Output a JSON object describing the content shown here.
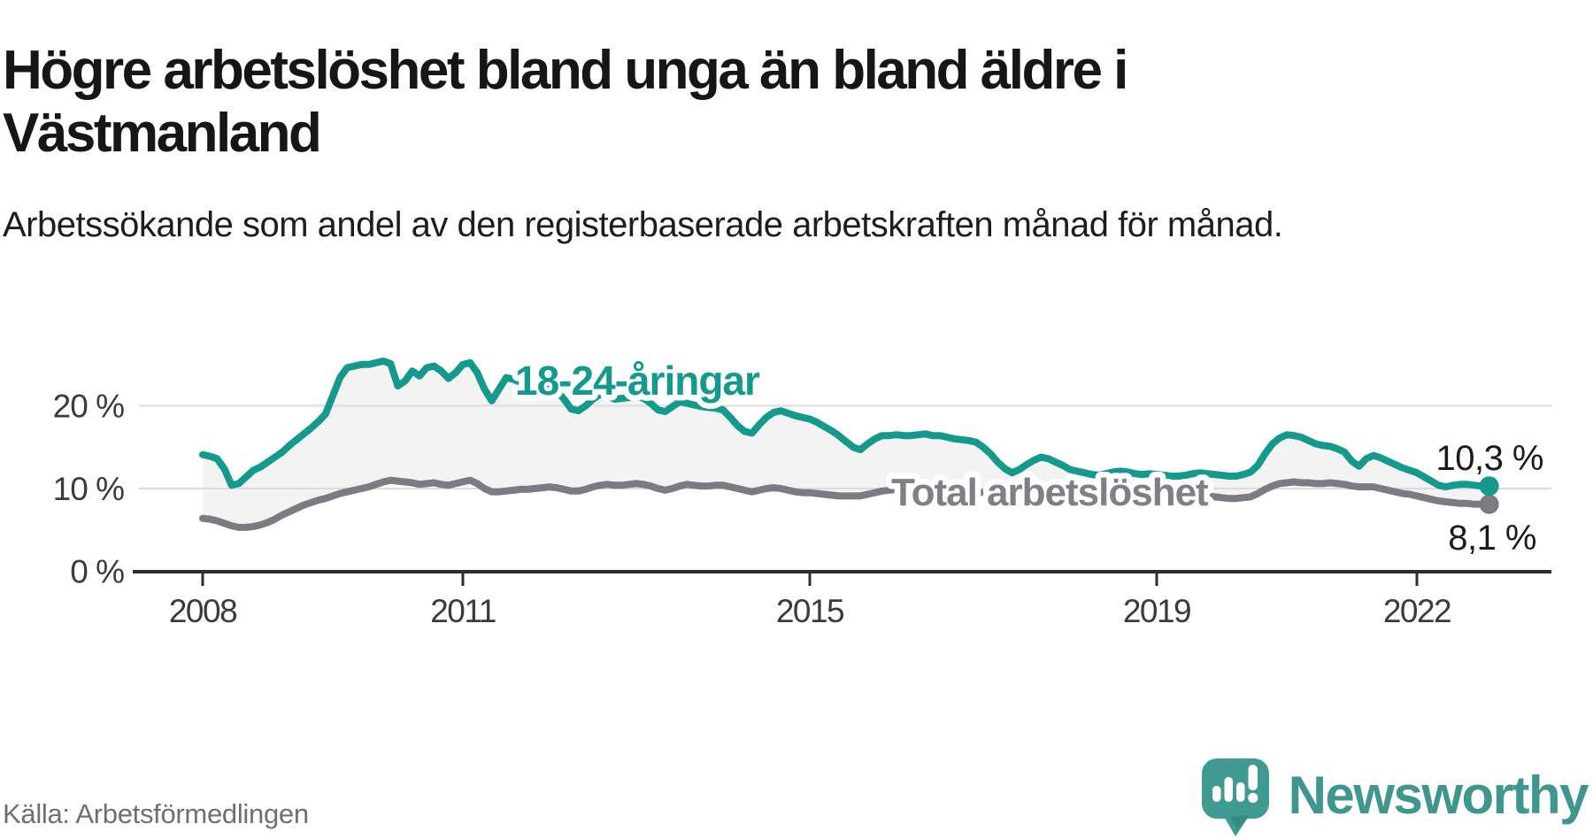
{
  "header": {
    "title": "Högre arbetslöshet bland unga än bland äldre i Västmanland",
    "subtitle": "Arbetssökande som andel av den registerbaserade arbetskraften månad för månad."
  },
  "footer": {
    "source": "Källa: Arbetsförmedlingen",
    "brand": "Newsworthy"
  },
  "colors": {
    "accent_teal": "#149a8c",
    "accent_gray": "#7b7b81",
    "band_fill": "#f3f3f3",
    "grid": "#dcdcdc",
    "axis": "#2e2e2e",
    "tick_text": "#3b3b3b",
    "end_label_text": "#1a1a1a",
    "logo_teal": "#3f9a92",
    "logo_tail": "#368a82"
  },
  "chart_data": {
    "type": "line",
    "title": "Högre arbetslöshet bland unga än bland äldre i Västmanland",
    "subtitle": "Arbetssökande som andel av den registerbaserade arbetskraften månad för månad.",
    "x_unit": "month",
    "x_start": "2008-01",
    "x_end": "2022-11",
    "ylim": [
      0,
      27
    ],
    "grid": "horizontal",
    "legend_position": "inline-labels",
    "yticks": [
      {
        "v": 0,
        "label": "0 %"
      },
      {
        "v": 10,
        "label": "10 %"
      },
      {
        "v": 20,
        "label": "20 %"
      }
    ],
    "xticks": [
      {
        "label": "2008",
        "m": 0
      },
      {
        "label": "2011",
        "m": 36
      },
      {
        "label": "2015",
        "m": 84
      },
      {
        "label": "2019",
        "m": 132
      },
      {
        "label": "2022",
        "m": 168
      }
    ],
    "series": [
      {
        "name": "Total arbetslöshet",
        "color": "#7b7b81",
        "end_label": "8,1 %",
        "end_value": 8.1,
        "values": [
          6.4,
          6.3,
          6.1,
          5.8,
          5.5,
          5.3,
          5.3,
          5.4,
          5.6,
          5.9,
          6.3,
          6.8,
          7.2,
          7.6,
          8.0,
          8.3,
          8.6,
          8.8,
          9.1,
          9.4,
          9.6,
          9.8,
          10.0,
          10.2,
          10.5,
          10.8,
          11.0,
          10.9,
          10.8,
          10.7,
          10.5,
          10.6,
          10.7,
          10.5,
          10.4,
          10.6,
          10.8,
          11.0,
          10.6,
          10.0,
          9.6,
          9.6,
          9.7,
          9.8,
          9.9,
          9.9,
          10.0,
          10.1,
          10.2,
          10.1,
          9.9,
          9.7,
          9.7,
          9.9,
          10.2,
          10.4,
          10.5,
          10.4,
          10.4,
          10.5,
          10.6,
          10.5,
          10.3,
          10.0,
          9.8,
          10.0,
          10.3,
          10.5,
          10.4,
          10.3,
          10.3,
          10.4,
          10.4,
          10.2,
          10.0,
          9.8,
          9.6,
          9.8,
          10.0,
          10.1,
          10.0,
          9.8,
          9.6,
          9.5,
          9.5,
          9.4,
          9.3,
          9.2,
          9.1,
          9.1,
          9.1,
          9.1,
          9.3,
          9.5,
          9.7,
          9.8,
          9.9,
          10.0,
          10.0,
          9.9,
          9.9,
          9.8,
          9.8,
          9.7,
          9.7,
          9.6,
          9.6,
          9.6,
          9.5,
          9.4,
          9.3,
          9.2,
          9.1,
          9.2,
          9.3,
          9.4,
          9.4,
          9.3,
          9.2,
          9.2,
          9.1,
          9.0,
          8.9,
          8.8,
          8.8,
          8.9,
          9.0,
          9.0,
          8.9,
          8.8,
          8.8,
          8.8,
          8.8,
          8.8,
          8.8,
          8.8,
          8.9,
          9.0,
          9.1,
          9.1,
          9.0,
          8.9,
          8.8,
          8.8,
          8.9,
          9.0,
          9.4,
          9.9,
          10.3,
          10.6,
          10.7,
          10.8,
          10.7,
          10.7,
          10.6,
          10.6,
          10.7,
          10.6,
          10.5,
          10.3,
          10.2,
          10.2,
          10.2,
          10.0,
          9.8,
          9.6,
          9.4,
          9.3,
          9.1,
          8.9,
          8.7,
          8.5,
          8.4,
          8.3,
          8.2,
          8.2,
          8.1,
          8.1,
          8.1
        ]
      },
      {
        "name": "18-24-åringar",
        "color": "#149a8c",
        "end_label": "10,3 %",
        "end_value": 10.3,
        "values": [
          14.1,
          13.9,
          13.6,
          12.4,
          10.4,
          10.6,
          11.4,
          12.2,
          12.6,
          13.2,
          13.8,
          14.4,
          15.2,
          15.9,
          16.6,
          17.3,
          18.1,
          19.0,
          21.2,
          23.4,
          24.6,
          24.8,
          25.0,
          25.0,
          25.2,
          25.4,
          25.1,
          22.4,
          23.0,
          24.2,
          23.6,
          24.6,
          24.8,
          24.2,
          23.3,
          24.0,
          25.0,
          25.2,
          24.0,
          22.0,
          20.6,
          22.0,
          23.4,
          23.2,
          22.8,
          22.4,
          22.0,
          22.2,
          22.4,
          21.8,
          20.8,
          19.6,
          19.4,
          20.0,
          20.8,
          21.4,
          21.2,
          20.8,
          20.9,
          21.0,
          21.2,
          20.9,
          20.3,
          19.5,
          19.3,
          19.9,
          20.5,
          20.3,
          20.1,
          19.9,
          19.8,
          19.7,
          19.5,
          18.6,
          17.6,
          16.9,
          16.7,
          17.7,
          18.6,
          19.2,
          19.4,
          19.1,
          18.8,
          18.6,
          18.4,
          18.0,
          17.5,
          17.0,
          16.4,
          15.7,
          15.0,
          14.7,
          15.4,
          16.0,
          16.4,
          16.4,
          16.5,
          16.4,
          16.4,
          16.5,
          16.6,
          16.4,
          16.4,
          16.2,
          16.0,
          15.9,
          15.8,
          15.6,
          15.0,
          14.2,
          13.2,
          12.4,
          11.9,
          12.3,
          12.9,
          13.4,
          13.8,
          13.6,
          13.2,
          12.8,
          12.3,
          12.1,
          11.9,
          11.7,
          11.6,
          11.8,
          12.0,
          12.1,
          12.0,
          11.8,
          11.7,
          11.8,
          11.7,
          11.6,
          11.5,
          11.5,
          11.6,
          11.8,
          11.9,
          11.8,
          11.7,
          11.6,
          11.5,
          11.5,
          11.7,
          12.0,
          12.8,
          14.2,
          15.4,
          16.1,
          16.5,
          16.4,
          16.2,
          15.8,
          15.4,
          15.2,
          15.1,
          14.8,
          14.4,
          13.3,
          12.7,
          13.6,
          14.0,
          13.7,
          13.3,
          12.9,
          12.5,
          12.2,
          11.9,
          11.4,
          10.9,
          10.4,
          10.2,
          10.4,
          10.5,
          10.5,
          10.4,
          10.3,
          10.3
        ]
      }
    ]
  }
}
